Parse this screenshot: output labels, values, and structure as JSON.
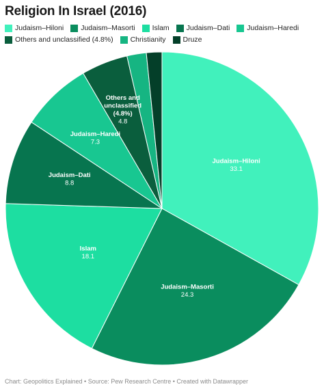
{
  "chart_data": {
    "type": "pie",
    "title": "Religion In Israel (2016)",
    "slices": [
      {
        "label": "Judaism–Hiloni",
        "value": 33.1,
        "color": "#41f1bc",
        "show_label": true,
        "text_color": "#000000"
      },
      {
        "label": "Judaism–Masorti",
        "value": 24.3,
        "color": "#0a8d5e",
        "show_label": true,
        "text_color": "#ffffff"
      },
      {
        "label": "Islam",
        "value": 18.1,
        "color": "#1ddea1",
        "show_label": true,
        "text_color": "#000000"
      },
      {
        "label": "Judaism–Dati",
        "value": 8.8,
        "color": "#07754f",
        "show_label": true,
        "text_color": "#ffffff"
      },
      {
        "label": "Judaism–Haredi",
        "value": 7.3,
        "color": "#18c791",
        "show_label": true,
        "text_color": "#000000"
      },
      {
        "label": "Others and unclassified (4.8%)",
        "value": 4.8,
        "color": "#0a5e3d",
        "show_label": true,
        "text_color": "#ffffff"
      },
      {
        "label": "Christianity",
        "value": 2.0,
        "color": "#16b582",
        "show_label": false,
        "text_color": "#000000"
      },
      {
        "label": "Druze",
        "value": 1.6,
        "color": "#043f29",
        "show_label": false,
        "text_color": "#ffffff"
      }
    ]
  },
  "footer": {
    "text": "Chart: Geopolitics Explained • Source: Pew Research Centre • Created with Datawrapper"
  }
}
